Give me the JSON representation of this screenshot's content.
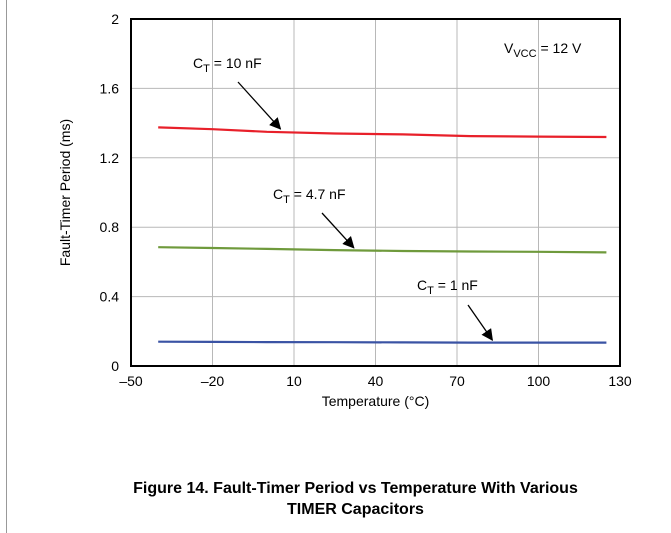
{
  "chart_data": {
    "type": "line",
    "xlabel": "Temperature (°C)",
    "ylabel": "Fault-Timer Period (ms)",
    "xlim": [
      -50,
      130
    ],
    "ylim": [
      0,
      2
    ],
    "xticks": [
      -50,
      -20,
      10,
      40,
      70,
      100,
      130
    ],
    "xtick_labels": [
      "–50",
      "–20",
      "10",
      "40",
      "70",
      "100",
      "130"
    ],
    "yticks": [
      0,
      0.4,
      0.8,
      1.2,
      1.6,
      2
    ],
    "ytick_labels": [
      "0",
      "0.4",
      "0.8",
      "1.2",
      "1.6",
      "2"
    ],
    "grid": true,
    "series": [
      {
        "name": "CT = 10 nF",
        "color": "#e8202a",
        "x": [
          -40,
          -20,
          0,
          25,
          50,
          75,
          100,
          125
        ],
        "y": [
          1.375,
          1.365,
          1.35,
          1.34,
          1.335,
          1.325,
          1.322,
          1.32
        ]
      },
      {
        "name": "CT = 4.7 nF",
        "color": "#6f9a3c",
        "x": [
          -40,
          -20,
          0,
          25,
          50,
          75,
          100,
          125
        ],
        "y": [
          0.685,
          0.68,
          0.675,
          0.668,
          0.663,
          0.66,
          0.658,
          0.655
        ]
      },
      {
        "name": "CT = 1 nF",
        "color": "#3a53a4",
        "x": [
          -40,
          -20,
          0,
          25,
          50,
          75,
          100,
          125
        ],
        "y": [
          0.14,
          0.139,
          0.138,
          0.137,
          0.136,
          0.135,
          0.135,
          0.135
        ]
      }
    ],
    "annotations": [
      {
        "main": "C",
        "sub": "T",
        "rest": " = 10 nF",
        "point": [
          5,
          1.355
        ]
      },
      {
        "main": "C",
        "sub": "T",
        "rest": " = 4.7 nF",
        "point": [
          32,
          0.67
        ]
      },
      {
        "main": "C",
        "sub": "T",
        "rest": " = 1 nF",
        "point": [
          83,
          0.138
        ]
      },
      {
        "main": "V",
        "sub": "VCC",
        "rest": " = 12 V"
      }
    ]
  },
  "caption": {
    "line1": "Figure 14. Fault-Timer Period vs Temperature With Various",
    "line2": "TIMER Capacitors"
  }
}
